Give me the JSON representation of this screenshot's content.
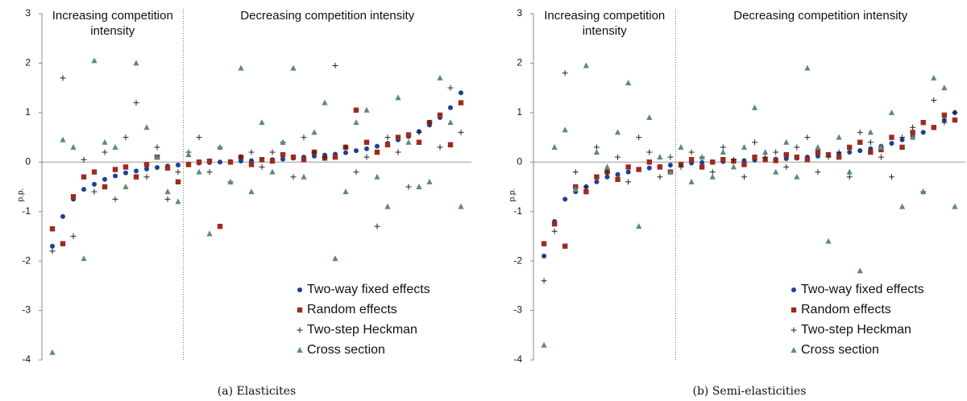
{
  "chart_data": [
    {
      "type": "scatter",
      "caption": "(a)  Elasticites",
      "ylabel": "p.p.",
      "annotations": [
        "Increasing competition intensity",
        "Decreasing competition intensity"
      ],
      "divider_x": 13.5,
      "legend": "lower right",
      "x": [
        1,
        2,
        3,
        4,
        5,
        6,
        7,
        8,
        9,
        10,
        11,
        12,
        13,
        14,
        15,
        16,
        17,
        18,
        19,
        20,
        21,
        22,
        23,
        24,
        25,
        26,
        27,
        28,
        29,
        30,
        31,
        32,
        33,
        34,
        35,
        36,
        37,
        38,
        39,
        40
      ],
      "xlim": [
        0,
        41
      ],
      "ylim": [
        -4,
        3
      ],
      "yticks": [
        -4,
        -3,
        -2,
        -1,
        0,
        1,
        2,
        3
      ],
      "series": [
        {
          "name": "Two-way fixed effects",
          "color": "#1f3e96",
          "marker": "circle",
          "values": [
            -1.7,
            -1.1,
            -0.75,
            -0.55,
            -0.45,
            -0.35,
            -0.28,
            -0.22,
            -0.18,
            -0.14,
            -0.11,
            -0.08,
            -0.06,
            -0.04,
            -0.02,
            -0.01,
            0,
            0.01,
            0.02,
            0.03,
            0.04,
            0.05,
            0.06,
            0.08,
            0.1,
            0.12,
            0.14,
            0.16,
            0.19,
            0.23,
            0.27,
            0.32,
            0.38,
            0.45,
            0.52,
            0.62,
            0.75,
            0.9,
            1.1,
            1.4
          ]
        },
        {
          "name": "Random effects",
          "color": "#9e2a1e",
          "marker": "square",
          "values": [
            -1.35,
            -1.65,
            -0.7,
            -0.3,
            -0.2,
            -0.5,
            -0.15,
            -0.1,
            -0.3,
            -0.05,
            0.1,
            -0.12,
            -0.4,
            -0.05,
            0,
            0.02,
            -1.3,
            0,
            0.1,
            -0.05,
            0.05,
            0.02,
            0.15,
            0.1,
            0.05,
            0.2,
            0.08,
            0.1,
            0.3,
            1.05,
            0.4,
            0.2,
            0.35,
            0.5,
            0.55,
            0.4,
            0.8,
            0.95,
            0.35,
            1.2
          ]
        },
        {
          "name": "Two-step Heckman",
          "color": "#222222",
          "marker": "plus",
          "values": [
            -1.8,
            1.7,
            -1.5,
            0.05,
            -0.6,
            0.2,
            -0.75,
            0.5,
            1.2,
            -0.3,
            0.3,
            -0.75,
            -0.2,
            0.2,
            0.5,
            -0.2,
            0.3,
            -0.4,
            0.1,
            0.2,
            -0.1,
            0.2,
            0.4,
            -0.3,
            0.5,
            0.2,
            0.1,
            1.95,
            0.3,
            -0.2,
            0.1,
            -1.3,
            0.5,
            0.2,
            -0.5,
            0.6,
            0.8,
            0.3,
            1.5,
            0.6
          ]
        },
        {
          "name": "Cross section",
          "color": "#5b8a7a",
          "marker": "triangle",
          "values": [
            -3.85,
            0.45,
            0.3,
            -1.95,
            2.05,
            0.4,
            0.3,
            -0.5,
            2.0,
            0.7,
            0.1,
            -0.6,
            -0.8,
            0.15,
            -0.2,
            -1.45,
            0.3,
            -0.4,
            1.9,
            -0.6,
            0.8,
            -0.2,
            0.4,
            1.9,
            -0.3,
            0.6,
            1.2,
            -1.95,
            -0.6,
            0.8,
            1.05,
            -0.3,
            -0.9,
            1.3,
            0.4,
            -0.5,
            -0.4,
            1.7,
            0.8,
            -0.9
          ]
        }
      ]
    },
    {
      "type": "scatter",
      "caption": "(b)  Semi-elasticities",
      "ylabel": "p.p.",
      "annotations": [
        "Increasing competition intensity",
        "Decreasing competition intensity"
      ],
      "divider_x": 13.5,
      "legend": "lower right",
      "x": [
        1,
        2,
        3,
        4,
        5,
        6,
        7,
        8,
        9,
        10,
        11,
        12,
        13,
        14,
        15,
        16,
        17,
        18,
        19,
        20,
        21,
        22,
        23,
        24,
        25,
        26,
        27,
        28,
        29,
        30,
        31,
        32,
        33,
        34,
        35,
        36,
        37,
        38,
        39,
        40
      ],
      "xlim": [
        0,
        41
      ],
      "ylim": [
        -4,
        3
      ],
      "yticks": [
        -4,
        -3,
        -2,
        -1,
        0,
        1,
        2,
        3
      ],
      "series": [
        {
          "name": "Two-way fixed effects",
          "color": "#1f3e96",
          "marker": "circle",
          "values": [
            -1.9,
            -1.2,
            -0.75,
            -0.6,
            -0.5,
            -0.4,
            -0.3,
            -0.25,
            -0.2,
            -0.15,
            -0.12,
            -0.09,
            -0.06,
            -0.04,
            -0.02,
            -0.01,
            0,
            0.01,
            0.02,
            0.03,
            0.04,
            0.05,
            0.06,
            0.07,
            0.08,
            0.1,
            0.12,
            0.14,
            0.17,
            0.2,
            0.23,
            0.27,
            0.32,
            0.38,
            0.45,
            0.52,
            0.6,
            0.7,
            0.85,
            1.0
          ]
        },
        {
          "name": "Random effects",
          "color": "#9e2a1e",
          "marker": "square",
          "values": [
            -1.65,
            -1.25,
            -1.7,
            -0.5,
            -0.6,
            -0.3,
            -0.2,
            -0.35,
            -0.1,
            -0.15,
            0,
            -0.1,
            -0.2,
            -0.05,
            0.05,
            -0.1,
            0,
            0.05,
            0.02,
            -0.05,
            0.1,
            0.05,
            0.03,
            0.15,
            0.1,
            0.05,
            0.2,
            0.15,
            0.1,
            0.3,
            0.4,
            0.2,
            0.25,
            0.5,
            0.3,
            0.6,
            0.8,
            0.7,
            0.95,
            0.85
          ]
        },
        {
          "name": "Two-step Heckman",
          "color": "#222222",
          "marker": "plus",
          "values": [
            -2.4,
            -1.4,
            1.8,
            -0.2,
            -0.5,
            0.3,
            -0.2,
            0.1,
            -0.4,
            0.5,
            0.2,
            -0.3,
            0.1,
            -0.1,
            0.2,
            0.1,
            -0.2,
            0.3,
            0.05,
            -0.3,
            0.4,
            0.1,
            0.2,
            -0.1,
            0.3,
            0.5,
            -0.2,
            0.1,
            0.2,
            -0.3,
            0.6,
            0.4,
            0.1,
            -0.3,
            0.5,
            0.7,
            -0.6,
            1.25,
            0.8,
            1.0
          ]
        },
        {
          "name": "Cross section",
          "color": "#5b8a7a",
          "marker": "triangle",
          "values": [
            -3.7,
            0.3,
            0.65,
            -0.55,
            1.95,
            0.2,
            -0.1,
            0.6,
            1.6,
            -1.3,
            0.9,
            0.1,
            -0.2,
            0.3,
            -0.4,
            0.1,
            -0.3,
            0.2,
            -0.1,
            0.3,
            1.1,
            0.2,
            -0.2,
            0.4,
            -0.3,
            1.9,
            0.3,
            -1.6,
            0.5,
            -0.2,
            -2.2,
            0.6,
            0.3,
            1.0,
            -0.9,
            0.5,
            -0.6,
            1.7,
            1.5,
            -0.9
          ]
        }
      ]
    }
  ]
}
